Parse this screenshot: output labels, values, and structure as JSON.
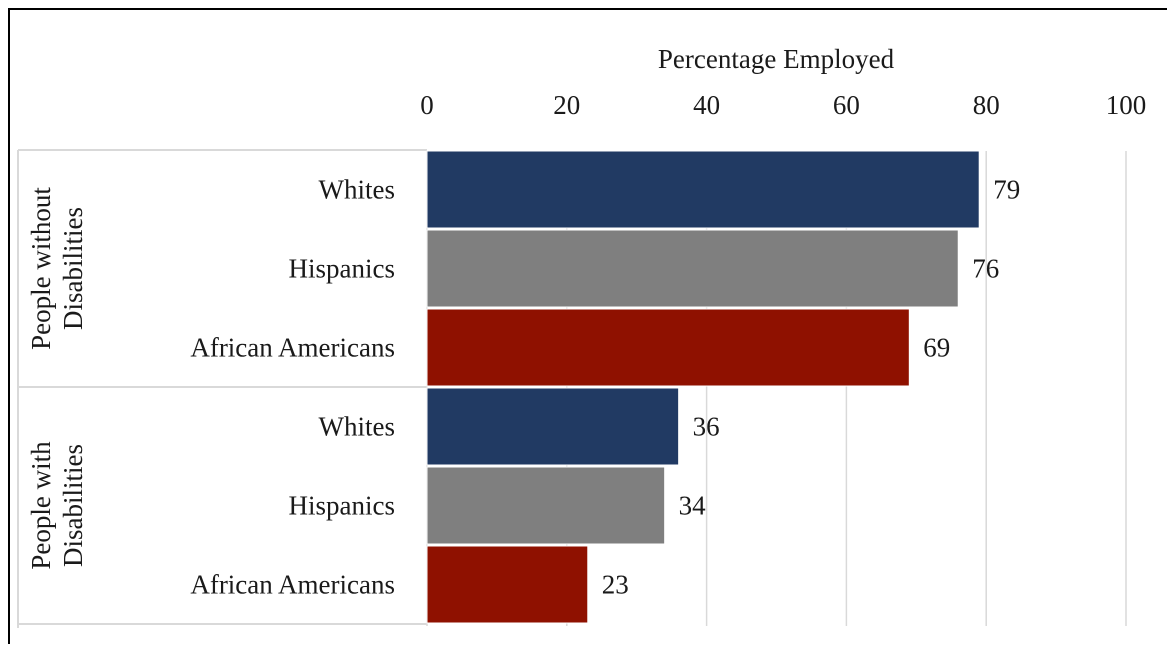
{
  "chart_data": {
    "type": "bar",
    "orientation": "horizontal",
    "title": "",
    "xlabel": "Percentage Employed",
    "xlim": [
      0,
      100
    ],
    "x_ticks": [
      "0",
      "20",
      "40",
      "60",
      "80",
      "100"
    ],
    "grid": "vertical",
    "groups": [
      {
        "label_lines": [
          "People without",
          "Disabilities"
        ],
        "bars": [
          {
            "category": "Whites",
            "value": 79,
            "label": "79",
            "color": "#213a63"
          },
          {
            "category": "Hispanics",
            "value": 76,
            "label": "76",
            "color": "#7f7f7f"
          },
          {
            "category": "African Americans",
            "value": 69,
            "label": "69",
            "color": "#8f1100"
          }
        ]
      },
      {
        "label_lines": [
          "People with",
          "Disabilities"
        ],
        "bars": [
          {
            "category": "Whites",
            "value": 36,
            "label": "36",
            "color": "#213a63"
          },
          {
            "category": "Hispanics",
            "value": 34,
            "label": "34",
            "color": "#7f7f7f"
          },
          {
            "category": "African Americans",
            "value": 23,
            "label": "23",
            "color": "#8f1100"
          }
        ]
      }
    ]
  }
}
